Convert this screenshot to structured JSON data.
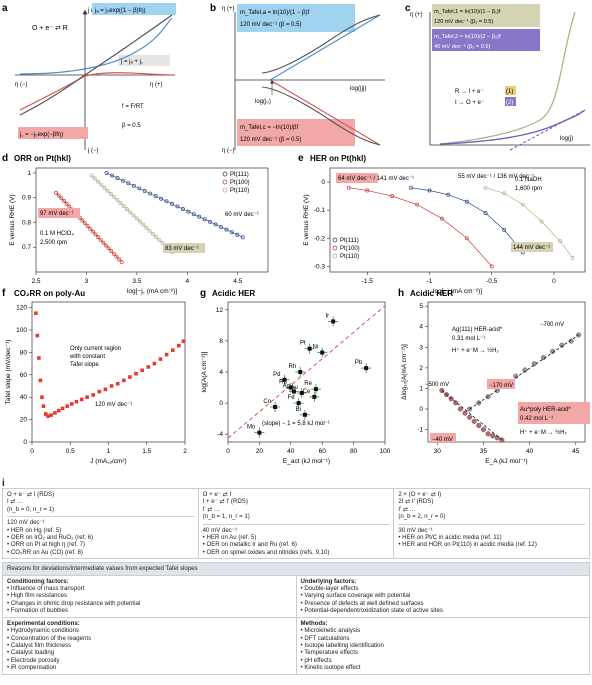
{
  "panels": {
    "a": {
      "letter": "a",
      "y_top": "j (+)",
      "y_bottom": "j (−)",
      "x_left": "η (−)",
      "x_right": "η (+)",
      "reaction": "O + e⁻ ⇄ R",
      "ja_label": "jₐ = j₀exp((1 − β)fη)",
      "jc_label": "j꜀ = −j₀exp(−βfη)",
      "j_sum": "j = jₐ + j꜀",
      "f_def": "f = F/RT",
      "beta": "β = 0.5"
    },
    "b": {
      "letter": "b",
      "y_top": "η (+)",
      "y_bottom": "η (−)",
      "x_label": "log(|j|)",
      "j0_label": "log(j₀)",
      "box_top_1": "m_Tafel,a = ln(10)/(1 − β)f",
      "box_top_2": "120 mV dec⁻¹ (β = 0.5)",
      "box_bot_1": "m_Tafel,c = −ln(10)/βf",
      "box_bot_2": "120 mV dec⁻¹ (β = 0.5)"
    },
    "c": {
      "letter": "c",
      "y_top": "η (+)",
      "x_label": "log(j)",
      "box1_1": "m_Tafel,1 = ln(10)/(1 − β₁)f",
      "box1_2": "120 mV dec⁻¹ (β₁ = 0.5)",
      "box2_1": "m_Tafel,2 = ln(10)/(2 − β₂)f",
      "box2_2": "40 mV dec⁻¹ (β₂ = 0.5)",
      "rxn1": "R → I + e⁻",
      "rxn1_tag": "(1)",
      "rxn2": "I → O + e⁻",
      "rxn2_tag": "(2)"
    },
    "d": {
      "letter": "d",
      "title": "ORR on Pt(hkl)",
      "electrolyte_1": "0.1 M HClO₄",
      "electrolyte_2": "2,500 rpm"
    },
    "e": {
      "letter": "e",
      "title": "HER on Pt(hkl)",
      "electrolyte_1": "0.1 NaOH",
      "electrolyte_2": "1,600 rpm"
    },
    "f": {
      "letter": "f",
      "title": "CO₂RR on poly-Au",
      "note_1": "Only current region",
      "note_2": "with constant",
      "note_3": "Tafel slope",
      "slope_label": "120 mV dec⁻¹"
    },
    "g": {
      "letter": "g",
      "title": "Acidic HER",
      "fit_label": "(slope) − 1 = 5.8 kJ mol⁻¹"
    },
    "h": {
      "letter": "h",
      "title": "Acidic HER",
      "ag_1": "Ag(111) HER-acid*",
      "ag_2": "0.31 mol L⁻¹",
      "ag_rxn": "H⁺ + e⁻M → ½H₂",
      "au_1": "Au^poly HER-acid*",
      "au_2": "0.42 mol L⁻¹",
      "au_rxn": "H⁺ + e⁻M → ½H₂",
      "v1": "−700 mV",
      "v2": "−500 mV",
      "v3": "−170 mV",
      "v4": "−40 mV"
    }
  },
  "chart_data": [
    {
      "id": "d",
      "type": "scatter",
      "title": "ORR on Pt(hkl)",
      "xlabel": "log[−j꜀ (mA cm⁻²)]",
      "ylabel": "E versus RHE (V)",
      "xlim": [
        2.5,
        4.8
      ],
      "ylim": [
        0.6,
        1.02
      ],
      "xticks": [
        2.5,
        3.0,
        3.5,
        4.0,
        4.5
      ],
      "yticks": [
        0.7,
        0.8,
        0.9,
        1.0
      ],
      "legend": [
        "Pt(111)",
        "Pt(100)",
        "Pt(110)"
      ],
      "legend_position": "top-right",
      "series": [
        {
          "name": "Pt(111)",
          "color": "#2b4a7e",
          "x": [
            3.2,
            4.55
          ],
          "y": [
            1.0,
            0.74
          ],
          "slope_label": "60 mV dec⁻¹"
        },
        {
          "name": "Pt(100)",
          "color": "#c9403b",
          "x": [
            2.7,
            3.35
          ],
          "y": [
            0.92,
            0.64
          ],
          "slope_label": "97 mV dec⁻¹"
        },
        {
          "name": "Pt(110)",
          "color": "#b5b08c",
          "x": [
            3.05,
            3.85
          ],
          "y": [
            0.99,
            0.68
          ],
          "slope_label": "83 mV dec⁻¹"
        }
      ]
    },
    {
      "id": "e",
      "type": "scatter",
      "title": "HER on Pt(hkl)",
      "xlabel": "log[−j (mA cm⁻²)]",
      "ylabel": "E versus RHE (V)",
      "xlim": [
        -1.8,
        0.25
      ],
      "ylim": [
        -0.32,
        0.05
      ],
      "xticks": [
        -1.5,
        -1.0,
        -0.5,
        0
      ],
      "yticks": [
        -0.3,
        -0.2,
        -0.1,
        0
      ],
      "legend": [
        "Pt(111)",
        "Pt(100)",
        "Pt(110)"
      ],
      "legend_position": "bottom-left",
      "series": [
        {
          "name": "Pt(111)",
          "color": "#2b4a7e",
          "slope_label": "55 mV dec⁻¹ / 136 mV dec⁻¹",
          "x": [
            -1.15,
            -1.0,
            -0.85,
            -0.7,
            -0.55,
            -0.4,
            -0.25
          ],
          "y": [
            -0.02,
            -0.03,
            -0.045,
            -0.07,
            -0.11,
            -0.17,
            -0.25
          ]
        },
        {
          "name": "Pt(100)",
          "color": "#c9403b",
          "slope_label": "64 mV dec⁻¹ / 141 mV dec⁻¹",
          "x": [
            -1.65,
            -1.5,
            -1.3,
            -1.1,
            -0.9,
            -0.7,
            -0.5
          ],
          "y": [
            -0.02,
            -0.03,
            -0.05,
            -0.08,
            -0.13,
            -0.2,
            -0.3
          ]
        },
        {
          "name": "Pt(110)",
          "color": "#b5b08c",
          "slope_label": "144 mV dec⁻¹",
          "x": [
            -0.55,
            -0.4,
            -0.25,
            -0.1,
            0.05,
            0.15
          ],
          "y": [
            -0.02,
            -0.04,
            -0.08,
            -0.14,
            -0.21,
            -0.27
          ]
        }
      ]
    },
    {
      "id": "f",
      "type": "scatter",
      "title": "CO₂RR on poly-Au",
      "xlabel": "J (mA꜀ₒ/cm²)",
      "ylabel": "Tafel slope (mV/dec⁻¹)",
      "xlim": [
        0,
        2.0
      ],
      "ylim": [
        0,
        125
      ],
      "xticks": [
        0,
        0.5,
        1.0,
        1.5,
        2.0
      ],
      "yticks": [
        0,
        20,
        40,
        60,
        80,
        100,
        120
      ],
      "series": [
        {
          "name": "",
          "color": "#e8392f",
          "x": [
            0.05,
            0.07,
            0.09,
            0.11,
            0.13,
            0.15,
            0.18,
            0.21,
            0.25,
            0.3,
            0.35,
            0.4,
            0.46,
            0.52,
            0.58,
            0.65,
            0.72,
            0.8,
            0.88,
            0.96,
            1.04,
            1.12,
            1.2,
            1.28,
            1.36,
            1.44,
            1.52,
            1.6,
            1.68,
            1.76,
            1.84,
            1.92,
            1.98
          ],
          "y": [
            115,
            95,
            75,
            55,
            40,
            32,
            25,
            23,
            24,
            26,
            28,
            30,
            32,
            34,
            36,
            38,
            40,
            42,
            45,
            47,
            50,
            52,
            55,
            58,
            61,
            64,
            67,
            70,
            74,
            78,
            82,
            86,
            90
          ]
        }
      ]
    },
    {
      "id": "g",
      "type": "scatter",
      "title": "Acidic HER",
      "xlabel": "E_act (kJ mol⁻¹)",
      "ylabel": "log[A(A cm⁻²)]",
      "xlim": [
        0,
        100
      ],
      "ylim": [
        -5,
        13
      ],
      "xticks": [
        0,
        20,
        40,
        60,
        80,
        100
      ],
      "yticks": [
        -4,
        0,
        4,
        8,
        12
      ],
      "fit_line": {
        "x": [
          0,
          100
        ],
        "y": [
          -4.5,
          12.5
        ]
      },
      "series": [
        {
          "name": "metals",
          "color": "#111",
          "labels": [
            "Ir",
            "Pt",
            "Ni",
            "Pb",
            "Rh",
            "Pd",
            "Ru",
            "Ag",
            "Au",
            "Re",
            "Ce",
            "Fe",
            "Bi",
            "Co",
            "Mo"
          ],
          "x": [
            67,
            52,
            60,
            88,
            46,
            36,
            40,
            42,
            47,
            56,
            55,
            45,
            49,
            30,
            20
          ],
          "y": [
            10.5,
            7.0,
            6.5,
            4.5,
            4.0,
            3.0,
            2.0,
            1.5,
            1.3,
            1.8,
            0.8,
            0.0,
            -1.5,
            -0.5,
            -3.8
          ]
        }
      ]
    },
    {
      "id": "h",
      "type": "scatter",
      "title": "Acidic HER",
      "xlabel": "E_A (kJ mol⁻¹)",
      "ylabel": "Δlog₁₀[A(mA cm⁻²)]",
      "xlim": [
        29,
        46
      ],
      "ylim": [
        -1.6,
        5.2
      ],
      "xticks": [
        30,
        35,
        40,
        45
      ],
      "yticks": [
        -1,
        0,
        1,
        2,
        3,
        4,
        5
      ],
      "series": [
        {
          "name": "Ag(111) HER-acid*",
          "color": "#9a9a9a",
          "x": [
            33.5,
            34.5,
            35.5,
            36.5,
            37.5,
            38.5,
            39.5,
            40.5,
            41.5,
            42.5,
            43.5,
            44.5,
            45.3
          ],
          "y": [
            0.0,
            0.3,
            0.6,
            0.9,
            1.2,
            1.6,
            1.9,
            2.2,
            2.5,
            2.8,
            3.1,
            3.3,
            3.6
          ]
        },
        {
          "name": "Au^poly HER-acid*",
          "color": "#c4676b",
          "x": [
            30.5,
            31.0,
            31.5,
            32.0,
            32.5,
            33.0,
            33.5,
            34.0,
            34.5,
            35.0,
            35.5,
            36.0,
            36.5,
            37.0
          ],
          "y": [
            0.9,
            0.7,
            0.5,
            0.3,
            0.0,
            -0.2,
            -0.4,
            -0.6,
            -0.8,
            -1.0,
            -1.2,
            -1.3,
            -1.4,
            -1.5
          ]
        }
      ]
    }
  ],
  "table": {
    "letter": "i",
    "col1_head": [
      "O + e⁻ ⇄ I (RDS)",
      "I ⇄ …",
      "(n_b = 0, n_r = 1)"
    ],
    "col2_head": [
      "O + e⁻ ⇄ I",
      "I + e⁻ ⇄ I′ (RDS)",
      "I′ ⇄ …",
      "(n_b = 1, n_r = 1)"
    ],
    "col3_head": [
      "2 × (O + e⁻ ⇄ I)",
      "2I ⇄ I′ (RDS)",
      "I′ ⇄ …",
      "(n_b = 2, n_r = 0)"
    ],
    "col1_slope": "120 mV dec⁻¹",
    "col2_slope": "40 mV dec⁻¹",
    "col3_slope": "30 mV dec⁻¹",
    "col1_items": [
      "HER on Hg (ref. 5)",
      "OER on IrO₂ and RuO₂ (ref. 6)",
      "ORR on Pt at high η (ref. 7)",
      "CO₂RR on Au (CO) (ref. 8)"
    ],
    "col2_items": [
      "HER on Au (ref. 5)",
      "OER on metallic Ir and Ru (ref. 6)",
      "OER on spinel oxides and nitrides (refs. 9,10)"
    ],
    "col3_items": [
      "HER on Pt/C in acidic media (ref. 11)",
      "HER and HOR on Pt(110) in acidic media (ref. 12)"
    ],
    "reasons_head": "Reasons for deviations/intermediate values from expected Tafel slopes",
    "cond_title": "Conditioning factors:",
    "cond_items": [
      "Influence of mass transport",
      "High film resistances",
      "Changes in ohmic drop resistance with potential",
      "Formation of bubbles"
    ],
    "under_title": "Underlying factors:",
    "under_items": [
      "Double-layer effects",
      "Varying surface coverage with potential",
      "Presence of defects at well defined surfaces",
      "Potential-dependent/oxidization state of active sites"
    ],
    "exp_title": "Experimental conditions:",
    "exp_items": [
      "Hydrodynamic conditions",
      "Concentration of the reagents",
      "Catalyst film thickness",
      "Catalyst loading",
      "Electrode porosity",
      "iR compensation"
    ],
    "meth_title": "Methods:",
    "meth_items": [
      "Microkinetic analysis",
      "DFT calculations",
      "Isotope labelling identification",
      "Temperature effects",
      "pH effects",
      "Kinetic isotope effect"
    ]
  }
}
